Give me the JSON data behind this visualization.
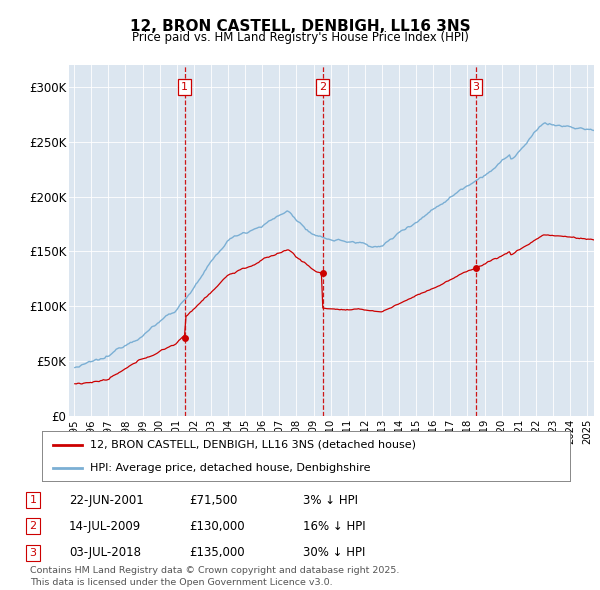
{
  "title": "12, BRON CASTELL, DENBIGH, LL16 3NS",
  "subtitle": "Price paid vs. HM Land Registry's House Price Index (HPI)",
  "plot_bg_color": "#dce6f0",
  "ylim": [
    0,
    320000
  ],
  "yticks": [
    0,
    50000,
    100000,
    150000,
    200000,
    250000,
    300000
  ],
  "ytick_labels": [
    "£0",
    "£50K",
    "£100K",
    "£150K",
    "£200K",
    "£250K",
    "£300K"
  ],
  "sale_prices": [
    71500,
    130000,
    135000
  ],
  "red_line_color": "#cc0000",
  "blue_line_color": "#7bafd4",
  "vline_color": "#cc0000",
  "legend_label_red": "12, BRON CASTELL, DENBIGH, LL16 3NS (detached house)",
  "legend_label_blue": "HPI: Average price, detached house, Denbighshire",
  "footer_text": "Contains HM Land Registry data © Crown copyright and database right 2025.\nThis data is licensed under the Open Government Licence v3.0.",
  "table_rows": [
    [
      "1",
      "22-JUN-2001",
      "£71,500",
      "3% ↓ HPI"
    ],
    [
      "2",
      "14-JUL-2009",
      "£130,000",
      "16% ↓ HPI"
    ],
    [
      "3",
      "03-JUL-2018",
      "£135,000",
      "30% ↓ HPI"
    ]
  ],
  "sale_t": [
    2001.47,
    2009.54,
    2018.5
  ],
  "xmin": 1994.7,
  "xmax": 2025.4
}
